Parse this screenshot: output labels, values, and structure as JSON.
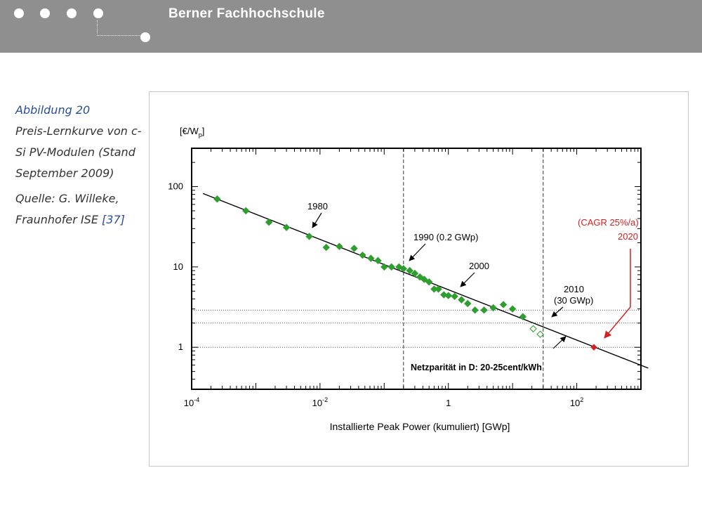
{
  "header": {
    "title": "Berner Fachhochschule"
  },
  "caption": {
    "figure_label": "Abbildung 20",
    "description": "Preis-Lernkurve von c-Si PV-Modulen (Stand September 2009)",
    "source_prefix": "Quelle: G. Willeke, Fraunhofer ISE",
    "source_ref": "[37]"
  },
  "chart_data": {
    "type": "scatter",
    "ylabel": "[€/Wp]",
    "xlabel": "Installierte Peak Power (kumuliert) [GWp]",
    "x_scale": "log",
    "y_scale": "log",
    "xlim": [
      0.0001,
      1000
    ],
    "ylim": [
      0.3,
      300
    ],
    "x_ticks": [
      {
        "value": 0.0001,
        "base": "10",
        "exp": "-4"
      },
      {
        "value": 0.01,
        "base": "10",
        "exp": "-2"
      },
      {
        "value": 1,
        "base": "1",
        "exp": ""
      },
      {
        "value": 100,
        "base": "10",
        "exp": "2"
      }
    ],
    "y_ticks": [
      {
        "value": 1,
        "label": "1"
      },
      {
        "value": 10,
        "label": "10"
      },
      {
        "value": 100,
        "label": "100"
      }
    ],
    "series": [
      {
        "points": [
          [
            0.00025,
            70
          ],
          [
            0.0007,
            50
          ],
          [
            0.0016,
            36
          ],
          [
            0.003,
            31
          ],
          [
            0.0068,
            24
          ],
          [
            0.0125,
            17.5
          ],
          [
            0.02,
            18
          ],
          [
            0.034,
            17
          ],
          [
            0.046,
            14
          ],
          [
            0.062,
            12.8
          ],
          [
            0.08,
            12
          ],
          [
            0.1,
            10
          ],
          [
            0.13,
            10
          ],
          [
            0.17,
            10
          ],
          [
            0.2,
            9.5
          ],
          [
            0.25,
            9
          ],
          [
            0.3,
            8.3
          ],
          [
            0.36,
            7.5
          ],
          [
            0.42,
            7
          ],
          [
            0.5,
            6.5
          ],
          [
            0.6,
            5.3
          ],
          [
            0.7,
            5.3
          ],
          [
            0.85,
            4.5
          ],
          [
            1.0,
            4.4
          ],
          [
            1.25,
            4.3
          ],
          [
            1.6,
            3.9
          ],
          [
            2.0,
            3.5
          ],
          [
            2.6,
            2.9
          ],
          [
            3.6,
            2.9
          ],
          [
            5.0,
            3.1
          ],
          [
            7.2,
            3.4
          ],
          [
            10,
            3.0
          ],
          [
            14.5,
            2.4
          ]
        ]
      },
      {
        "style": "open",
        "points": [
          [
            21,
            1.7
          ],
          [
            27,
            1.45
          ]
        ]
      },
      {
        "style": "highlight",
        "points": [
          [
            185,
            1.0
          ]
        ]
      }
    ],
    "trend_line": [
      [
        0.00015,
        82
      ],
      [
        1300,
        0.55
      ]
    ],
    "reference_lines": {
      "vertical_dashed_x": [
        0.2,
        30
      ],
      "horizontal_dotted_y": [
        1.0,
        2.0,
        2.9
      ]
    },
    "annotations": {
      "a1980": "1980",
      "a1990": "1990 (0.2 GWp)",
      "a2000": "2000",
      "a2010_year": "2010",
      "a2010_sub": "(30 GWp)",
      "cagr": "(CAGR 25%/a)",
      "a2020": "2020",
      "grid_parity": "Netzparität in D: 20-25cent/kWh"
    },
    "colors": {
      "markers": "#2e9e2e",
      "highlight": "#d42020",
      "line": "#000000"
    }
  }
}
